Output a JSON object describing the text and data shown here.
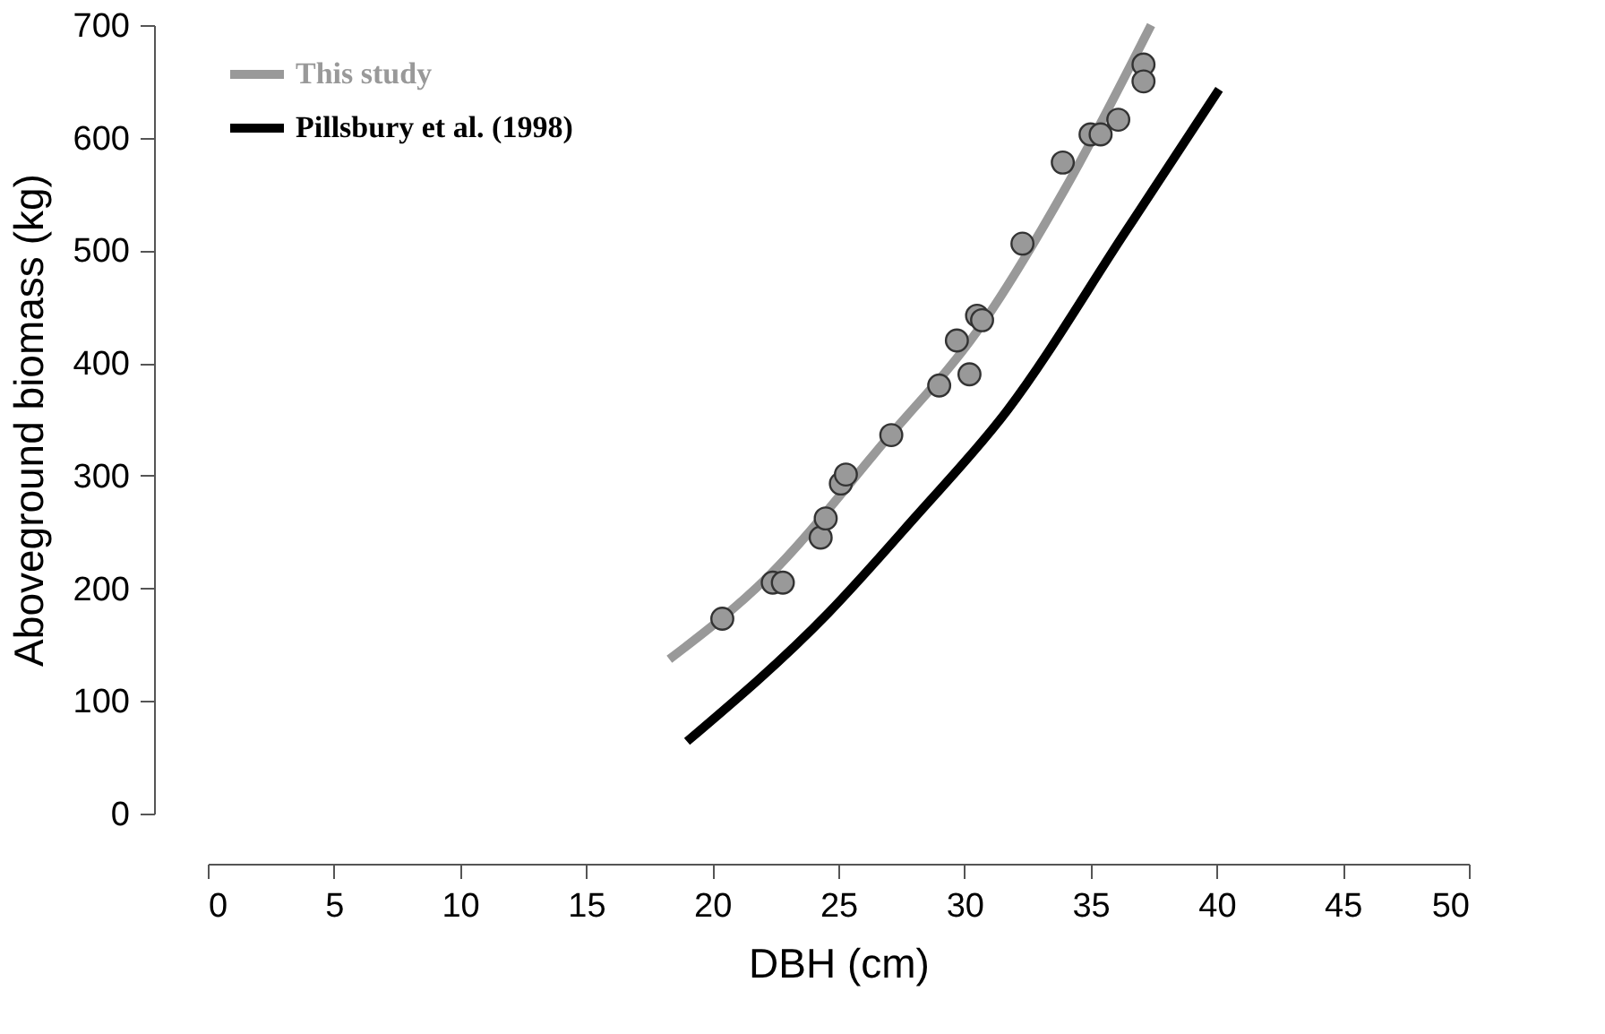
{
  "chart_data": {
    "type": "scatter",
    "xlabel": "DBH (cm)",
    "ylabel": "Aboveground biomass (kg)",
    "xlim": [
      0,
      50
    ],
    "xticks": [
      0,
      5,
      10,
      15,
      20,
      25,
      30,
      35,
      40,
      45,
      50
    ],
    "ylim": [
      0,
      700
    ],
    "yticks": [
      0,
      100,
      200,
      300,
      400,
      500,
      600,
      700
    ],
    "grid": false,
    "legend": "top left",
    "line_style": "solid",
    "series": [
      {
        "color": "#999999",
        "marker": "circle",
        "x": [
          20.4,
          22.4,
          22.8,
          24.3,
          24.5,
          25.1,
          25.3,
          27.1,
          29.0,
          30.2,
          29.7,
          30.5,
          30.7,
          32.3,
          33.9,
          35.0,
          35.4,
          36.1,
          37.1,
          37.1
        ],
        "values": [
          173,
          205,
          205,
          245,
          262,
          293,
          301,
          336,
          380,
          390,
          420,
          442,
          438,
          506,
          578,
          603,
          603,
          616,
          665,
          650
        ]
      },
      {
        "name": "This study",
        "color": "#999999",
        "type": "line",
        "marker": "none",
        "x": [
          18.3,
          22.2,
          26.9,
          30.5,
          34.0,
          37.4
        ],
        "values": [
          137,
          210,
          332,
          428,
          555,
          700
        ]
      },
      {
        "name": "Pillsbury et al. (1998)",
        "color": "#000000",
        "type": "line",
        "marker": "none",
        "x": [
          19.0,
          24.6,
          28.0,
          31.7,
          36.4,
          40.1
        ],
        "values": [
          64,
          178,
          262,
          358,
          517,
          643
        ]
      }
    ]
  }
}
